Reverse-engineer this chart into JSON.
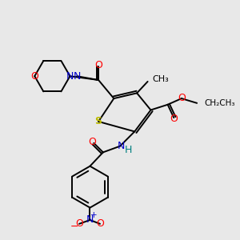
{
  "bg_color": "#e8e8e8",
  "atom_colors": {
    "C": "#000000",
    "N": "#0000cc",
    "O": "#ff0000",
    "S": "#bbbb00",
    "H": "#008080"
  },
  "figsize": [
    3.0,
    3.0
  ],
  "dpi": 100
}
